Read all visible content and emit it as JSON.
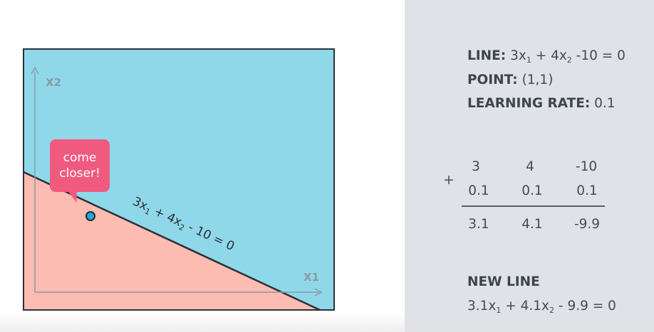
{
  "plot": {
    "x_axis_label": "X1",
    "y_axis_label": "X2",
    "line_label_coef1": "3x",
    "line_label_sub1": "1",
    "line_label_coef2": " + 4x",
    "line_label_sub2": "2",
    "line_label_rest": " - 10 = 0",
    "bubble_line1": "come",
    "bubble_line2": "closer!",
    "colors": {
      "positive_region": "#8fd8ea",
      "negative_region": "#fdbcb1",
      "point": "#29a6d8",
      "bubble": "#ef5a7e"
    }
  },
  "info": {
    "line_label": "LINE:",
    "line_coef1": "3x",
    "line_sub1": "1",
    "line_coef2": " + 4x",
    "line_sub2": "2",
    "line_rest": " -10 = 0",
    "point_label": "POINT:",
    "point_value": "(1,1)",
    "lr_label": "LEARNING RATE:",
    "lr_value": "0.1"
  },
  "calc": {
    "operator": "+",
    "row1": [
      "3",
      "4",
      "-10"
    ],
    "row2": [
      "0.1",
      "0.1",
      "0.1"
    ],
    "result": [
      "3.1",
      "4.1",
      "-9.9"
    ]
  },
  "new_line": {
    "label": "NEW LINE",
    "coef1": "3.1x",
    "sub1": "1",
    "coef2": " + 4.1x",
    "sub2": "2",
    "rest": " - 9.9 = 0"
  }
}
